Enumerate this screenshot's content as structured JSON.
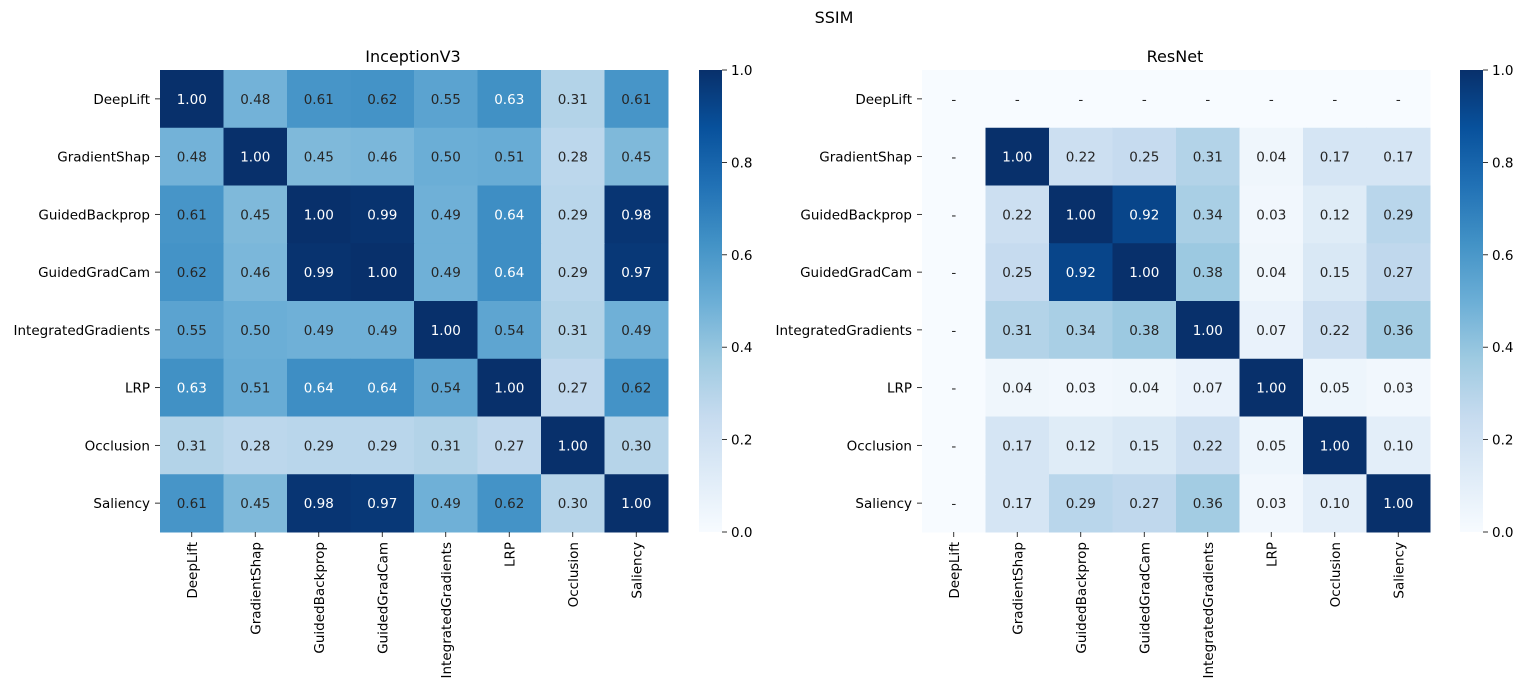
{
  "figure": {
    "title": "SSIM",
    "colormap": "Blues"
  },
  "chart_data": [
    {
      "type": "heatmap",
      "title": "InceptionV3",
      "rows": [
        "DeepLift",
        "GradientShap",
        "GuidedBackprop",
        "GuidedGradCam",
        "IntegratedGradients",
        "LRP",
        "Occlusion",
        "Saliency"
      ],
      "cols": [
        "DeepLift",
        "GradientShap",
        "GuidedBackprop",
        "GuidedGradCam",
        "IntegratedGradients",
        "LRP",
        "Occlusion",
        "Saliency"
      ],
      "values": [
        [
          1.0,
          0.48,
          0.61,
          0.62,
          0.55,
          0.63,
          0.31,
          0.61
        ],
        [
          0.48,
          1.0,
          0.45,
          0.46,
          0.5,
          0.51,
          0.28,
          0.45
        ],
        [
          0.61,
          0.45,
          1.0,
          0.99,
          0.49,
          0.64,
          0.29,
          0.98
        ],
        [
          0.62,
          0.46,
          0.99,
          1.0,
          0.49,
          0.64,
          0.29,
          0.97
        ],
        [
          0.55,
          0.5,
          0.49,
          0.49,
          1.0,
          0.54,
          0.31,
          0.49
        ],
        [
          0.63,
          0.51,
          0.64,
          0.64,
          0.54,
          1.0,
          0.27,
          0.62
        ],
        [
          0.31,
          0.28,
          0.29,
          0.29,
          0.31,
          0.27,
          1.0,
          0.3
        ],
        [
          0.61,
          0.45,
          0.98,
          0.97,
          0.49,
          0.62,
          0.3,
          1.0
        ]
      ],
      "value_format": "0.00",
      "missing_label": "-",
      "colorbar": {
        "range": [
          0,
          1
        ],
        "ticks": [
          "0.0",
          "0.2",
          "0.4",
          "0.6",
          "0.8",
          "1.0"
        ]
      }
    },
    {
      "type": "heatmap",
      "title": "ResNet",
      "rows": [
        "DeepLift",
        "GradientShap",
        "GuidedBackprop",
        "GuidedGradCam",
        "IntegratedGradients",
        "LRP",
        "Occlusion",
        "Saliency"
      ],
      "cols": [
        "DeepLift",
        "GradientShap",
        "GuidedBackprop",
        "GuidedGradCam",
        "IntegratedGradients",
        "LRP",
        "Occlusion",
        "Saliency"
      ],
      "values": [
        [
          null,
          null,
          null,
          null,
          null,
          null,
          null,
          null
        ],
        [
          null,
          1.0,
          0.22,
          0.25,
          0.31,
          0.04,
          0.17,
          0.17
        ],
        [
          null,
          0.22,
          1.0,
          0.92,
          0.34,
          0.03,
          0.12,
          0.29
        ],
        [
          null,
          0.25,
          0.92,
          1.0,
          0.38,
          0.04,
          0.15,
          0.27
        ],
        [
          null,
          0.31,
          0.34,
          0.38,
          1.0,
          0.07,
          0.22,
          0.36
        ],
        [
          null,
          0.04,
          0.03,
          0.04,
          0.07,
          1.0,
          0.05,
          0.03
        ],
        [
          null,
          0.17,
          0.12,
          0.15,
          0.22,
          0.05,
          1.0,
          0.1
        ],
        [
          null,
          0.17,
          0.29,
          0.27,
          0.36,
          0.03,
          0.1,
          1.0
        ]
      ],
      "value_format": "0.00",
      "missing_label": "-",
      "colorbar": {
        "range": [
          0,
          1
        ],
        "ticks": [
          "0.0",
          "0.2",
          "0.4",
          "0.6",
          "0.8",
          "1.0"
        ]
      }
    }
  ]
}
